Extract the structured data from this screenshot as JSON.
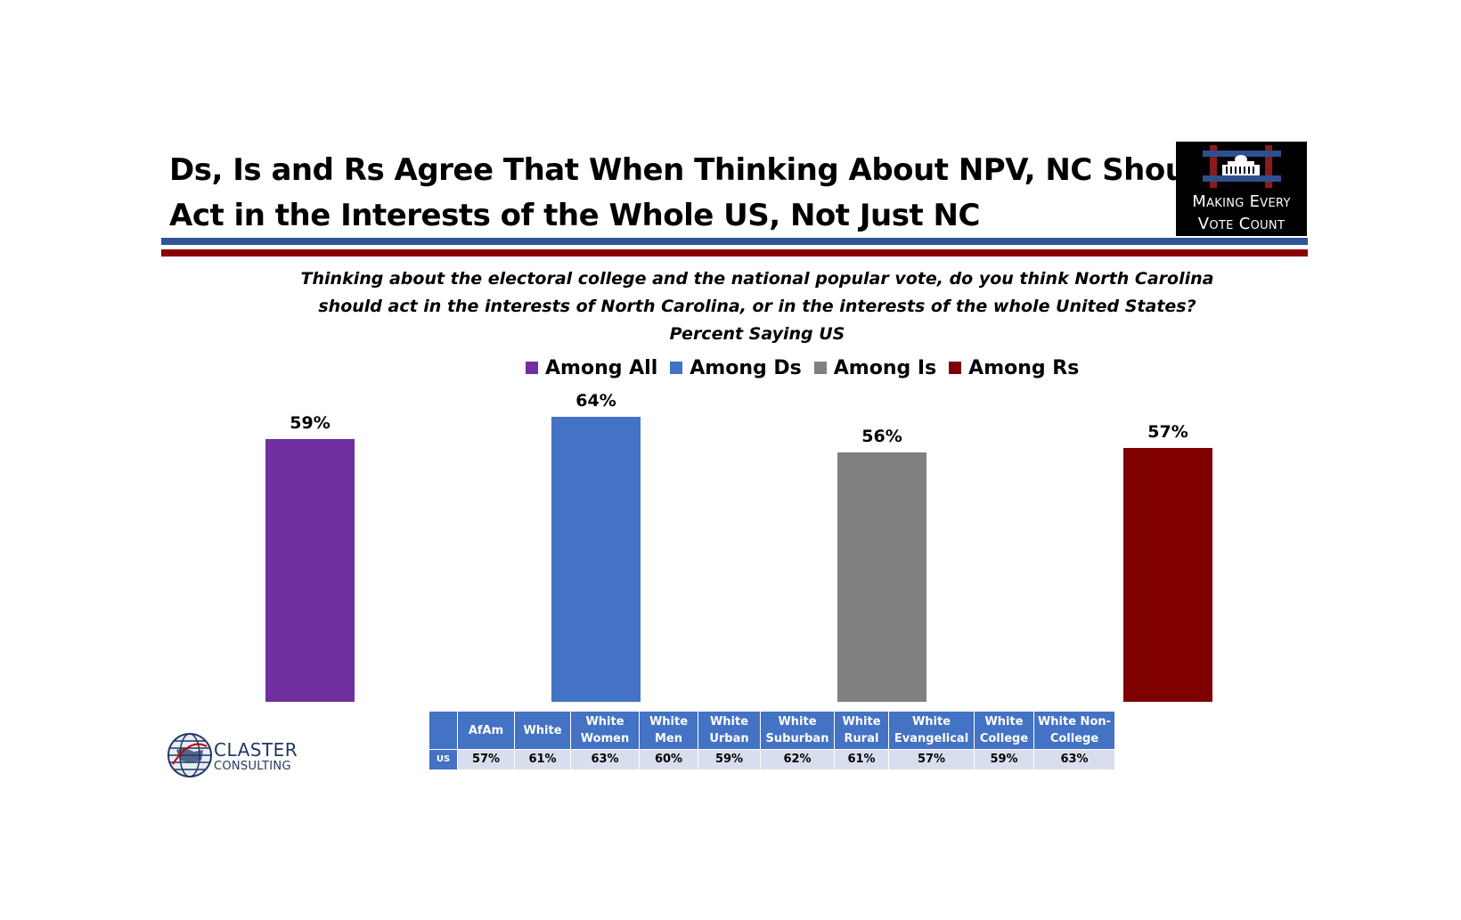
{
  "title": {
    "line1": "Ds, Is and Rs Agree That When Thinking About NPV, NC Should",
    "line2": "Act in the Interests of the Whole US, Not Just NC"
  },
  "logo": {
    "line1": "Making Every",
    "line2": "Vote Count"
  },
  "question": {
    "line1": "Thinking about the electoral college and the national popular vote, do you think North Carolina",
    "line2": "should act in the interests of North Carolina, or in the interests of the whole United States?",
    "line3": "Percent Saying US"
  },
  "chart_data": {
    "type": "bar",
    "categories": [
      "Among All",
      "Among Ds",
      "Among Is",
      "Among Rs"
    ],
    "values": [
      59,
      64,
      56,
      57
    ],
    "data_labels": [
      "59%",
      "64%",
      "56%",
      "57%"
    ],
    "colors": [
      "#7030a0",
      "#4472c4",
      "#808080",
      "#800000"
    ],
    "legend": [
      "Among All",
      "Among Ds",
      "Among Is",
      "Among Rs"
    ],
    "legend_position": "top-center",
    "grid": false,
    "ylim": [
      0,
      64
    ]
  },
  "table": {
    "headers": [
      "AfAm",
      "White",
      "White Women",
      "White Men",
      "White Urban",
      "White Suburban",
      "White Rural",
      "White Evangelical",
      "White College",
      "White Non-College"
    ],
    "row_label": "US",
    "values": [
      "57%",
      "61%",
      "63%",
      "60%",
      "59%",
      "62%",
      "61%",
      "57%",
      "59%",
      "63%"
    ]
  },
  "branding": {
    "company_line1": "CLASTER",
    "company_line2": "CONSULTING"
  }
}
